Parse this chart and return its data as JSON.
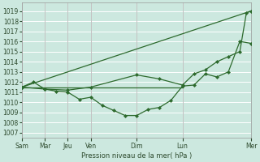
{
  "bg_color": "#cce8df",
  "grid_color": "#ffffff",
  "line_color": "#2d6a2d",
  "xlabel": "Pression niveau de la mer( hPa )",
  "ylim": [
    1006.5,
    1019.8
  ],
  "yticks": [
    1007,
    1008,
    1009,
    1010,
    1011,
    1012,
    1013,
    1014,
    1015,
    1016,
    1017,
    1018,
    1019
  ],
  "xlim": [
    0,
    7.0
  ],
  "xtick_positions": [
    0.0,
    0.7,
    1.4,
    2.1,
    3.5,
    4.9,
    7.0
  ],
  "xtick_labels": [
    "Sam",
    "Mar",
    "Jeu",
    "Ven",
    "Dim",
    "Lun",
    "Mer"
  ],
  "vline_positions": [
    0.0,
    0.7,
    1.4,
    2.1,
    3.5,
    4.9,
    7.0
  ],
  "series": [
    {
      "x": [
        0.0,
        0.35,
        0.7,
        1.05,
        1.4,
        1.75,
        2.1,
        2.45,
        2.8,
        3.15,
        3.5,
        3.85,
        4.2,
        4.55,
        4.9,
        5.25,
        5.6,
        5.95,
        6.3,
        6.65,
        7.0
      ],
      "y": [
        1011.5,
        1012.0,
        1011.3,
        1011.1,
        1011.0,
        1010.3,
        1010.5,
        1009.7,
        1009.2,
        1008.7,
        1008.7,
        1009.3,
        1009.5,
        1010.2,
        1011.6,
        1011.7,
        1012.8,
        1012.5,
        1013.0,
        1016.0,
        1015.8
      ],
      "marker": "D",
      "markersize": 2.0,
      "linewidth": 0.9
    },
    {
      "x": [
        0.0,
        7.0
      ],
      "y": [
        1011.5,
        1019.0
      ],
      "marker": null,
      "markersize": 0,
      "linewidth": 0.9
    },
    {
      "x": [
        0.0,
        0.7,
        1.4,
        2.1,
        3.5,
        4.2,
        4.9,
        5.25,
        5.6,
        5.95,
        6.3,
        6.65,
        6.85,
        7.0
      ],
      "y": [
        1011.5,
        1011.3,
        1011.2,
        1011.5,
        1012.7,
        1012.3,
        1011.7,
        1012.8,
        1013.2,
        1014.0,
        1014.5,
        1015.0,
        1018.8,
        1019.0
      ],
      "marker": "D",
      "markersize": 2.0,
      "linewidth": 0.9
    },
    {
      "x": [
        0.0,
        4.9
      ],
      "y": [
        1011.5,
        1011.5
      ],
      "marker": null,
      "markersize": 0,
      "linewidth": 0.9
    }
  ]
}
